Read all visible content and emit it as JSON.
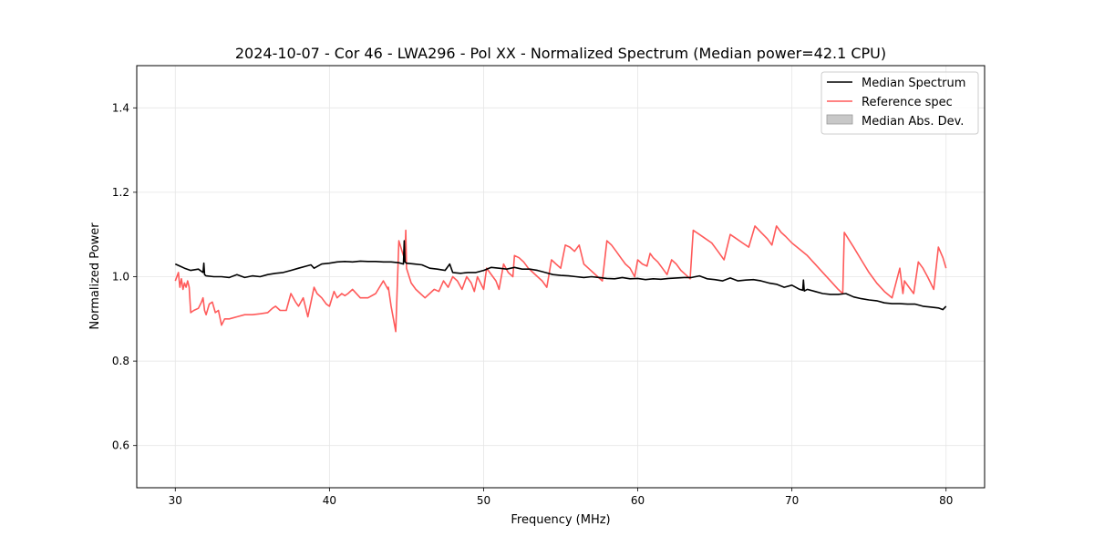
{
  "chart_data": {
    "type": "line",
    "title": "2024-10-07 - Cor 46 - LWA296 - Pol XX - Normalized Spectrum (Median power=42.1 CPU)",
    "xlabel": "Frequency (MHz)",
    "ylabel": "Normalized Power",
    "xlim": [
      27.5,
      82.5
    ],
    "ylim": [
      0.5,
      1.5
    ],
    "xticks": [
      30,
      40,
      50,
      60,
      70,
      80
    ],
    "yticks": [
      0.6,
      0.8,
      1.0,
      1.2,
      1.4
    ],
    "xtick_labels": [
      "30",
      "40",
      "50",
      "60",
      "70",
      "80"
    ],
    "ytick_labels": [
      "0.6",
      "0.8",
      "1.0",
      "1.2",
      "1.4"
    ],
    "grid": true,
    "legend_position": "top-right",
    "legend": [
      {
        "label": "Median Spectrum",
        "kind": "line",
        "color": "#000000"
      },
      {
        "label": "Reference spec",
        "kind": "line",
        "color": "#ff5a5a"
      },
      {
        "label": "Median Abs. Dev.",
        "kind": "patch",
        "color": "#c8c8c8"
      }
    ],
    "series": [
      {
        "name": "Median Spectrum",
        "color": "#000000",
        "x": [
          30.0,
          30.3,
          30.6,
          31.0,
          31.5,
          31.8,
          31.85,
          31.9,
          32.0,
          32.5,
          33.0,
          33.5,
          34.0,
          34.5,
          35.0,
          35.5,
          36.0,
          36.5,
          37.0,
          37.5,
          38.0,
          38.5,
          38.8,
          39.0,
          39.5,
          40.0,
          40.5,
          41.0,
          41.5,
          42.0,
          42.5,
          43.0,
          43.5,
          44.0,
          44.5,
          44.8,
          44.85,
          44.9,
          45.0,
          45.5,
          46.0,
          46.5,
          47.0,
          47.5,
          47.8,
          48.0,
          48.5,
          49.0,
          49.5,
          50.0,
          50.5,
          51.0,
          51.5,
          52.0,
          52.5,
          53.0,
          53.5,
          54.0,
          54.5,
          55.0,
          55.5,
          56.0,
          56.5,
          57.0,
          57.5,
          58.0,
          58.5,
          59.0,
          59.5,
          60.0,
          60.5,
          61.0,
          61.5,
          62.0,
          62.5,
          63.0,
          63.5,
          64.0,
          64.5,
          65.0,
          65.5,
          66.0,
          66.5,
          67.0,
          67.5,
          68.0,
          68.5,
          69.0,
          69.5,
          70.0,
          70.5,
          70.7,
          70.75,
          70.8,
          71.0,
          71.5,
          72.0,
          72.5,
          73.0,
          73.5,
          74.0,
          74.5,
          75.0,
          75.5,
          76.0,
          76.5,
          77.0,
          77.5,
          78.0,
          78.5,
          79.0,
          79.5,
          79.8,
          80.0
        ],
        "values": [
          1.03,
          1.025,
          1.02,
          1.015,
          1.018,
          1.01,
          1.032,
          1.005,
          1.002,
          1.0,
          1.0,
          0.998,
          1.005,
          0.998,
          1.002,
          1.0,
          1.005,
          1.008,
          1.01,
          1.015,
          1.02,
          1.025,
          1.028,
          1.02,
          1.03,
          1.032,
          1.035,
          1.036,
          1.035,
          1.037,
          1.036,
          1.036,
          1.035,
          1.035,
          1.033,
          1.03,
          1.085,
          1.035,
          1.032,
          1.03,
          1.028,
          1.02,
          1.018,
          1.015,
          1.03,
          1.01,
          1.008,
          1.01,
          1.01,
          1.015,
          1.022,
          1.02,
          1.018,
          1.022,
          1.018,
          1.018,
          1.015,
          1.01,
          1.005,
          1.003,
          1.002,
          1.0,
          0.998,
          1.0,
          0.998,
          0.996,
          0.995,
          0.998,
          0.995,
          0.996,
          0.993,
          0.995,
          0.994,
          0.996,
          0.997,
          0.998,
          0.998,
          1.002,
          0.995,
          0.993,
          0.99,
          0.997,
          0.99,
          0.992,
          0.993,
          0.99,
          0.985,
          0.982,
          0.975,
          0.98,
          0.97,
          0.968,
          0.992,
          0.966,
          0.97,
          0.965,
          0.96,
          0.958,
          0.958,
          0.96,
          0.952,
          0.948,
          0.945,
          0.943,
          0.938,
          0.936,
          0.936,
          0.935,
          0.935,
          0.93,
          0.928,
          0.926,
          0.922,
          0.93
        ]
      },
      {
        "name": "Reference spec",
        "color": "#ff5a5a",
        "x": [
          30.0,
          30.2,
          30.3,
          30.4,
          30.5,
          30.6,
          30.7,
          30.8,
          30.9,
          31.0,
          31.2,
          31.5,
          31.7,
          31.8,
          31.9,
          32.0,
          32.2,
          32.4,
          32.6,
          32.8,
          33.0,
          33.2,
          33.5,
          34.0,
          34.5,
          35.0,
          35.5,
          36.0,
          36.3,
          36.5,
          36.8,
          37.2,
          37.5,
          37.8,
          38.0,
          38.3,
          38.6,
          38.8,
          39.0,
          39.2,
          39.5,
          39.8,
          40.0,
          40.3,
          40.5,
          40.8,
          41.0,
          41.2,
          41.5,
          42.0,
          42.5,
          43.0,
          43.5,
          43.8,
          43.82,
          44.0,
          44.3,
          44.5,
          44.8,
          44.9,
          44.95,
          45.0,
          45.3,
          45.6,
          45.9,
          46.2,
          46.5,
          46.8,
          47.1,
          47.4,
          47.7,
          48.0,
          48.3,
          48.6,
          48.9,
          49.2,
          49.4,
          49.6,
          49.8,
          50.0,
          50.2,
          50.4,
          50.6,
          50.8,
          51.0,
          51.3,
          51.6,
          51.9,
          52.0,
          52.3,
          52.6,
          52.9,
          53.2,
          53.5,
          53.8,
          54.1,
          54.4,
          54.7,
          55.0,
          55.3,
          55.6,
          55.9,
          56.2,
          56.5,
          56.8,
          57.1,
          57.4,
          57.7,
          58.0,
          58.3,
          58.6,
          58.9,
          59.2,
          59.5,
          59.8,
          60.0,
          60.3,
          60.6,
          60.8,
          61.0,
          61.3,
          61.6,
          61.9,
          62.2,
          62.5,
          62.8,
          63.1,
          63.4,
          63.6,
          64.0,
          64.4,
          64.8,
          65.2,
          65.6,
          66.0,
          66.4,
          66.8,
          67.2,
          67.6,
          68.0,
          68.4,
          68.7,
          69.0,
          69.3,
          69.6,
          70.0,
          70.5,
          71.0,
          71.5,
          72.0,
          72.5,
          73.0,
          73.3,
          73.4,
          74.0,
          74.5,
          75.0,
          75.5,
          76.0,
          76.5,
          77.0,
          77.2,
          77.3,
          77.6,
          77.9,
          78.2,
          78.5,
          78.8,
          79.0,
          79.2,
          79.5,
          79.8,
          80.0
        ],
        "values": [
          0.99,
          1.01,
          0.975,
          0.995,
          0.97,
          0.985,
          0.975,
          0.99,
          0.975,
          0.915,
          0.92,
          0.925,
          0.94,
          0.95,
          0.92,
          0.91,
          0.935,
          0.94,
          0.915,
          0.92,
          0.885,
          0.9,
          0.9,
          0.905,
          0.91,
          0.91,
          0.912,
          0.915,
          0.925,
          0.93,
          0.92,
          0.92,
          0.96,
          0.94,
          0.93,
          0.95,
          0.905,
          0.94,
          0.975,
          0.96,
          0.95,
          0.935,
          0.93,
          0.965,
          0.95,
          0.96,
          0.955,
          0.96,
          0.97,
          0.95,
          0.95,
          0.96,
          0.99,
          0.97,
          0.975,
          0.93,
          0.87,
          1.085,
          1.05,
          1.04,
          1.11,
          1.02,
          0.985,
          0.97,
          0.96,
          0.95,
          0.96,
          0.97,
          0.965,
          0.99,
          0.975,
          1.0,
          0.99,
          0.97,
          1.0,
          0.985,
          0.965,
          1.0,
          0.985,
          0.97,
          1.02,
          1.01,
          1.0,
          0.99,
          0.97,
          1.03,
          1.01,
          1.0,
          1.05,
          1.045,
          1.035,
          1.02,
          1.01,
          1.0,
          0.99,
          0.975,
          1.04,
          1.03,
          1.02,
          1.075,
          1.07,
          1.06,
          1.075,
          1.03,
          1.02,
          1.01,
          1.0,
          0.99,
          1.085,
          1.075,
          1.06,
          1.045,
          1.03,
          1.02,
          1.0,
          1.04,
          1.03,
          1.025,
          1.055,
          1.045,
          1.035,
          1.02,
          1.005,
          1.04,
          1.03,
          1.015,
          1.005,
          0.995,
          1.11,
          1.1,
          1.09,
          1.08,
          1.06,
          1.04,
          1.1,
          1.09,
          1.08,
          1.07,
          1.12,
          1.105,
          1.09,
          1.075,
          1.12,
          1.105,
          1.095,
          1.08,
          1.065,
          1.05,
          1.03,
          1.01,
          0.99,
          0.97,
          0.96,
          1.105,
          1.07,
          1.04,
          1.01,
          0.985,
          0.965,
          0.95,
          1.02,
          0.96,
          0.99,
          0.975,
          0.96,
          1.035,
          1.02,
          1.0,
          0.985,
          0.97,
          1.07,
          1.045,
          1.02
        ]
      }
    ]
  }
}
